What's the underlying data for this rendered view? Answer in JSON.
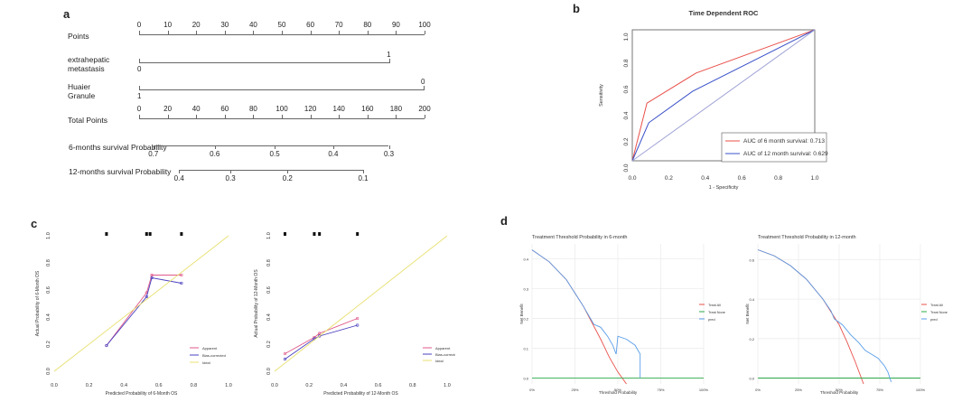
{
  "panels": {
    "a": "a",
    "b": "b",
    "c": "c",
    "d": "d"
  },
  "chart_data": [
    {
      "type": "nomogram",
      "rows": [
        {
          "label": "Points",
          "ticks": [
            "0",
            "10",
            "20",
            "30",
            "40",
            "50",
            "60",
            "70",
            "80",
            "90",
            "100"
          ],
          "tick_values": [
            0,
            10,
            20,
            30,
            40,
            50,
            60,
            70,
            80,
            90,
            100
          ],
          "range": [
            0,
            100
          ]
        },
        {
          "label": "extrahepatic metastasis",
          "label_lines": [
            "extrahepatic",
            "metastasis"
          ],
          "levels": [
            {
              "label": "0",
              "points": 0
            },
            {
              "label": "1",
              "points": 88
            }
          ]
        },
        {
          "label": "Huaier Granule",
          "label_lines": [
            "Huaier",
            "Granule"
          ],
          "levels": [
            {
              "label": "1",
              "points": 0
            },
            {
              "label": "0",
              "points": 100
            }
          ]
        },
        {
          "label": "Total Points",
          "ticks": [
            "0",
            "20",
            "40",
            "60",
            "80",
            "100",
            "120",
            "140",
            "160",
            "180",
            "200"
          ],
          "tick_values": [
            0,
            20,
            40,
            60,
            80,
            100,
            120,
            140,
            160,
            180,
            200
          ],
          "range": [
            0,
            200
          ]
        },
        {
          "label": "6-months survival Probability",
          "ticks": [
            "0.7",
            "0.6",
            "0.5",
            "0.4",
            "0.3"
          ],
          "total_points": [
            10,
            53,
            95,
            136,
            175
          ]
        },
        {
          "label": "12-months survival Probability",
          "ticks": [
            "0.4",
            "0.3",
            "0.2",
            "0.1"
          ],
          "total_points": [
            28,
            64,
            104,
            157
          ]
        }
      ]
    },
    {
      "type": "line",
      "title": "Time Dependent ROC",
      "xlabel": "1 - Specificity",
      "ylabel": "Sensitivity",
      "xlim": [
        0,
        1
      ],
      "ylim": [
        0,
        1
      ],
      "ticks": [
        "0.0",
        "0.2",
        "0.4",
        "0.6",
        "0.8",
        "1.0"
      ],
      "tick_values": [
        0,
        0.2,
        0.4,
        0.6,
        0.8,
        1.0
      ],
      "series": [
        {
          "name": "AUC of 6 month survival: 0.713",
          "color": "#e8504a",
          "x": [
            0,
            0.08,
            0.35,
            1
          ],
          "y": [
            0,
            0.44,
            0.67,
            1
          ]
        },
        {
          "name": "AUC of 12 month survival: 0.629",
          "color": "#3a50c8",
          "x": [
            0,
            0.09,
            0.33,
            1
          ],
          "y": [
            0,
            0.29,
            0.53,
            1
          ]
        },
        {
          "name": "reference",
          "color": "#9fa3d6",
          "x": [
            0,
            1
          ],
          "y": [
            0,
            1
          ]
        }
      ],
      "legend": "bottom-right"
    },
    {
      "type": "line",
      "title": "",
      "xlabel": "Predicted Probability of 6-Month OS",
      "ylabel": "Actual Probability of 6-Month OS",
      "xlim": [
        0,
        1
      ],
      "ylim": [
        0,
        1
      ],
      "ticks": [
        "0.0",
        "0.2",
        "0.4",
        "0.6",
        "0.8",
        "1.0"
      ],
      "tick_values": [
        0,
        0.2,
        0.4,
        0.6,
        0.8,
        1.0
      ],
      "rug": [
        0.3,
        0.53,
        0.55,
        0.73
      ],
      "series": [
        {
          "name": "Apparent",
          "color": "#e05a8a",
          "x": [
            0.3,
            0.53,
            0.56,
            0.73
          ],
          "y": [
            0.19,
            0.58,
            0.71,
            0.71
          ]
        },
        {
          "name": "Bias-corrected",
          "color": "#4a40c0",
          "x": [
            0.3,
            0.53,
            0.56,
            0.73
          ],
          "y": [
            0.19,
            0.55,
            0.69,
            0.65
          ]
        },
        {
          "name": "Ideal",
          "color": "#e8e070",
          "x": [
            0,
            1
          ],
          "y": [
            0,
            1
          ]
        }
      ],
      "legend": "bottom-right"
    },
    {
      "type": "line",
      "title": "",
      "xlabel": "Predicted Probability of 12-Month OS",
      "ylabel": "Actual Probability of 12-Month OS",
      "xlim": [
        0,
        1
      ],
      "ylim": [
        0,
        1
      ],
      "ticks": [
        "0.0",
        "0.2",
        "0.4",
        "0.6",
        "0.8",
        "1.0"
      ],
      "tick_values": [
        0,
        0.2,
        0.4,
        0.6,
        0.8,
        1.0
      ],
      "rug": [
        0.06,
        0.23,
        0.26,
        0.48
      ],
      "series": [
        {
          "name": "Apparent",
          "color": "#e05a8a",
          "x": [
            0.06,
            0.23,
            0.26,
            0.48
          ],
          "y": [
            0.13,
            0.25,
            0.28,
            0.39
          ]
        },
        {
          "name": "Bias-corrected",
          "color": "#4a40c0",
          "x": [
            0.06,
            0.23,
            0.26,
            0.48
          ],
          "y": [
            0.09,
            0.24,
            0.26,
            0.34
          ]
        },
        {
          "name": "Ideal",
          "color": "#e8e070",
          "x": [
            0,
            1
          ],
          "y": [
            0,
            1
          ]
        }
      ],
      "legend": "bottom-right"
    },
    {
      "type": "line",
      "title": "Treatment Threshold Probability in 6-month",
      "xlabel": "Threshold Probability",
      "ylabel": "Net Benefit",
      "xticks": [
        "0%",
        "25%",
        "50%",
        "75%",
        "100%"
      ],
      "xtick_values": [
        0,
        0.25,
        0.5,
        0.75,
        1.0
      ],
      "yticks": [
        "0.4",
        "0.3",
        "0.2",
        "0.1",
        "0.0"
      ],
      "ytick_values": [
        0.4,
        0.3,
        0.2,
        0.1,
        0.0
      ],
      "xlim": [
        0,
        1
      ],
      "ylim": [
        -0.02,
        0.45
      ],
      "series": [
        {
          "name": "Treat All",
          "color": "#e8504a",
          "x": [
            0,
            0.1,
            0.2,
            0.3,
            0.4,
            0.45,
            0.5,
            0.55
          ],
          "y": [
            0.43,
            0.39,
            0.33,
            0.24,
            0.13,
            0.07,
            0.02,
            -0.02
          ]
        },
        {
          "name": "Treat None",
          "color": "#2ca84a",
          "x": [
            0,
            1
          ],
          "y": [
            0,
            0
          ]
        },
        {
          "name": "pred",
          "color": "#5a9ee8",
          "x": [
            0,
            0.1,
            0.2,
            0.3,
            0.36,
            0.4,
            0.44,
            0.47,
            0.49,
            0.5,
            0.55,
            0.6,
            0.63,
            0.63
          ],
          "y": [
            0.43,
            0.39,
            0.33,
            0.24,
            0.18,
            0.17,
            0.14,
            0.11,
            0.08,
            0.14,
            0.13,
            0.11,
            0.08,
            0.0
          ]
        }
      ],
      "legend": "right"
    },
    {
      "type": "line",
      "title": "Treatment Threshold Probability in 12-month",
      "xlabel": "Threshold Probability",
      "ylabel": "Net Benefit",
      "xticks": [
        "0%",
        "25%",
        "50%",
        "75%",
        "100%"
      ],
      "xtick_values": [
        0,
        0.25,
        0.5,
        0.75,
        1.0
      ],
      "yticks": [
        "0.6",
        "0.4",
        "0.2",
        "0.0"
      ],
      "ytick_values": [
        0.6,
        0.4,
        0.2,
        0.0
      ],
      "xlim": [
        0,
        1
      ],
      "ylim": [
        -0.03,
        0.68
      ],
      "series": [
        {
          "name": "Treat All",
          "color": "#e8504a",
          "x": [
            0,
            0.1,
            0.2,
            0.3,
            0.4,
            0.5,
            0.55,
            0.6,
            0.65
          ],
          "y": [
            0.65,
            0.62,
            0.57,
            0.5,
            0.4,
            0.27,
            0.18,
            0.08,
            -0.03
          ]
        },
        {
          "name": "Treat None",
          "color": "#2ca84a",
          "x": [
            0,
            1
          ],
          "y": [
            0,
            0
          ]
        },
        {
          "name": "pred",
          "color": "#5a9ee8",
          "x": [
            0,
            0.1,
            0.2,
            0.3,
            0.4,
            0.45,
            0.47,
            0.52,
            0.57,
            0.62,
            0.66,
            0.7,
            0.74,
            0.78,
            0.8,
            0.82
          ],
          "y": [
            0.65,
            0.62,
            0.57,
            0.5,
            0.4,
            0.34,
            0.3,
            0.27,
            0.22,
            0.18,
            0.14,
            0.12,
            0.1,
            0.06,
            0.03,
            -0.02
          ]
        }
      ],
      "legend": "right"
    }
  ]
}
